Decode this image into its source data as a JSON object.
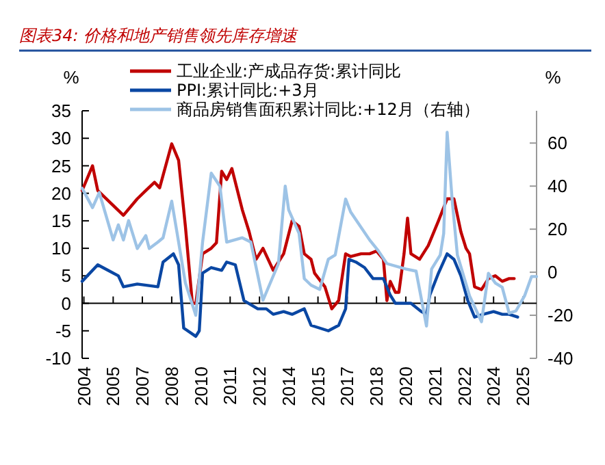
{
  "chart_data": {
    "type": "line",
    "title": "图表34: 价格和地产销售领先库存增速",
    "ylabel": "%",
    "y2label": "%",
    "xlim": [
      "2004-05",
      "2026-05"
    ],
    "xticks": [
      {
        "value": "2004-06",
        "label": "2004"
      },
      {
        "value": "2005-11",
        "label": "2005"
      },
      {
        "value": "2007-04",
        "label": "2007"
      },
      {
        "value": "2008-09",
        "label": "2008"
      },
      {
        "value": "2010-02",
        "label": "2010"
      },
      {
        "value": "2011-07",
        "label": "2011"
      },
      {
        "value": "2012-12",
        "label": "2012"
      },
      {
        "value": "2014-05",
        "label": "2014"
      },
      {
        "value": "2015-10",
        "label": "2015"
      },
      {
        "value": "2017-03",
        "label": "2017"
      },
      {
        "value": "2018-08",
        "label": "2018"
      },
      {
        "value": "2020-01",
        "label": "2020"
      },
      {
        "value": "2021-06",
        "label": "2021"
      },
      {
        "value": "2022-11",
        "label": "2022"
      },
      {
        "value": "2024-04",
        "label": "2024"
      },
      {
        "value": "2025-09",
        "label": "2025"
      }
    ],
    "ylim": [
      -10,
      35
    ],
    "yticks": [
      -10,
      -5,
      0,
      5,
      10,
      15,
      20,
      25,
      30,
      35
    ],
    "y2lim": [
      -40,
      75
    ],
    "y2ticks": [
      -40,
      -20,
      0,
      20,
      40,
      60
    ],
    "legend": "top left",
    "line_style": "solid",
    "series": [
      {
        "name": "工业企业:产成品存货:累计同比",
        "color": "#c00000",
        "x": [
          "2004-05",
          "2004-11",
          "2005-02",
          "2006-05",
          "2007-01",
          "2007-06",
          "2007-11",
          "2008-02",
          "2008-09",
          "2009-01",
          "2009-05",
          "2009-09",
          "2009-11",
          "2010-03",
          "2010-08",
          "2010-11",
          "2011-02",
          "2011-05",
          "2011-08",
          "2012-02",
          "2012-06",
          "2012-10",
          "2013-02",
          "2013-08",
          "2014-02",
          "2014-07",
          "2014-11",
          "2015-02",
          "2015-06",
          "2015-08",
          "2016-02",
          "2016-06",
          "2016-10",
          "2017-02",
          "2017-05",
          "2017-11",
          "2018-04",
          "2018-08",
          "2018-12",
          "2019-02",
          "2019-04",
          "2019-07",
          "2019-09",
          "2019-12",
          "2020-02",
          "2020-04",
          "2020-09",
          "2021-02",
          "2021-08",
          "2022-01",
          "2022-05",
          "2022-09",
          "2022-12",
          "2023-02",
          "2023-05",
          "2023-09",
          "2024-01",
          "2024-05",
          "2024-09",
          "2025-01",
          "2025-04"
        ],
        "values": [
          20.5,
          25,
          20.5,
          16,
          19,
          20.5,
          22,
          21,
          29,
          26,
          14,
          0,
          0,
          9,
          10,
          11,
          24,
          22.5,
          24.5,
          17,
          13,
          8,
          10,
          6,
          9,
          15,
          14,
          9,
          8,
          5.5,
          3,
          -1,
          0.5,
          9,
          8.5,
          9,
          9,
          9.5,
          8,
          0.5,
          4,
          2,
          2,
          9,
          15.5,
          9,
          8,
          10.5,
          15,
          19,
          19,
          13,
          10,
          9,
          3,
          2.5,
          4.5,
          5,
          4,
          4.5,
          4.5
        ]
      },
      {
        "name": "PPI:累计同比:+3月",
        "color": "#0a47a3",
        "x": [
          "2004-05",
          "2005-02",
          "2005-08",
          "2006-02",
          "2006-05",
          "2007-01",
          "2008-01",
          "2008-04",
          "2008-10",
          "2009-01",
          "2009-04",
          "2009-11",
          "2010-01",
          "2010-03",
          "2010-08",
          "2011-02",
          "2011-05",
          "2011-10",
          "2012-03",
          "2012-11",
          "2013-04",
          "2013-08",
          "2014-02",
          "2014-07",
          "2015-02",
          "2015-06",
          "2015-11",
          "2016-04",
          "2016-10",
          "2017-02",
          "2017-04",
          "2017-08",
          "2018-01",
          "2018-06",
          "2018-12",
          "2019-04",
          "2019-07",
          "2020-04",
          "2020-10",
          "2021-01",
          "2021-03",
          "2021-08",
          "2022-01",
          "2022-05",
          "2022-09",
          "2023-01",
          "2023-05",
          "2023-10",
          "2024-04",
          "2024-09",
          "2025-01",
          "2025-06"
        ],
        "values": [
          4,
          7,
          6,
          5,
          3,
          3.5,
          3,
          7.5,
          9,
          7,
          -4.5,
          -6,
          -5,
          5.5,
          6.5,
          6,
          7.5,
          7,
          0.5,
          -1,
          -1,
          -2,
          -1.5,
          -2,
          -1,
          -4,
          -4.5,
          -5,
          -4,
          -1,
          8,
          7.5,
          6.5,
          4.5,
          4.5,
          1.5,
          0,
          0,
          -1.5,
          -2,
          1.5,
          5.5,
          9,
          8,
          5,
          0.5,
          -2.5,
          -2,
          -1.5,
          -2,
          -2,
          -2.5
        ]
      },
      {
        "name": "商品房销售面积累计同比:+12月（右轴）",
        "color": "#9dc3e6",
        "axis": "y2",
        "x": [
          "2004-05",
          "2004-11",
          "2005-03",
          "2005-11",
          "2006-02",
          "2006-05",
          "2006-08",
          "2007-01",
          "2007-06",
          "2007-08",
          "2008-01",
          "2008-04",
          "2008-09",
          "2009-01",
          "2009-05",
          "2009-11",
          "2010-03",
          "2010-08",
          "2011-01",
          "2011-05",
          "2012-02",
          "2012-07",
          "2013-02",
          "2013-11",
          "2014-03",
          "2014-05",
          "2014-11",
          "2015-02",
          "2015-06",
          "2015-11",
          "2016-04",
          "2016-08",
          "2017-02",
          "2017-05",
          "2018-04",
          "2018-09",
          "2019-02",
          "2020-01",
          "2020-07",
          "2021-01",
          "2021-04",
          "2021-09",
          "2021-11",
          "2022-01",
          "2022-04",
          "2022-07",
          "2023-02",
          "2023-09",
          "2024-01",
          "2024-05",
          "2024-09",
          "2025-01",
          "2025-05",
          "2025-10",
          "2026-02",
          "2026-05"
        ],
        "values": [
          39,
          30,
          37,
          15,
          22,
          15,
          24,
          11,
          17,
          11,
          14,
          16,
          33,
          14,
          -5,
          -20,
          14,
          46,
          40,
          14,
          16,
          14,
          -13,
          4,
          40,
          29,
          18,
          -3,
          -6,
          -8,
          6,
          8,
          34,
          28,
          15,
          10,
          4,
          1.5,
          0.5,
          -25,
          1.5,
          8,
          18,
          65,
          33,
          8,
          -11,
          -23,
          -0.5,
          -5,
          -7,
          -19,
          -18,
          -11,
          -2,
          -2
        ]
      }
    ]
  }
}
